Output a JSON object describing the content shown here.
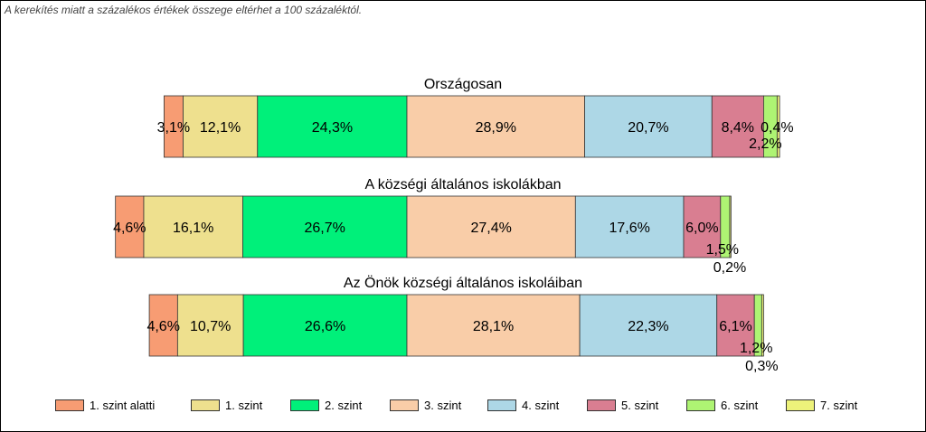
{
  "note": "A kerekítés miatt a  százalékos értékek összege eltérhet a 100 százaléktól.",
  "chart_data": {
    "type": "bar",
    "orientation": "horizontal",
    "stacked": true,
    "grid": false,
    "legend_position": "bottom",
    "legend": [
      {
        "label": "1. szint alatti",
        "color": "#F79C73"
      },
      {
        "label": "1. szint",
        "color": "#EEE08E"
      },
      {
        "label": "2. szint",
        "color": "#00F07A"
      },
      {
        "label": "3. szint",
        "color": "#F9CDA8"
      },
      {
        "label": "4. szint",
        "color": "#ADD7E6"
      },
      {
        "label": "5. szint",
        "color": "#D97E91"
      },
      {
        "label": "6. szint",
        "color": "#AEF473"
      },
      {
        "label": "7. szint",
        "color": "#EDF27A"
      }
    ],
    "groups": [
      {
        "title": "Országosan",
        "values": [
          3.1,
          12.1,
          24.3,
          28.9,
          20.7,
          8.4,
          2.2,
          0.4
        ],
        "labels": [
          "3,1%",
          "12,1%",
          "24,3%",
          "28,9%",
          "20,7%",
          "8,4%",
          "2,2%",
          "0,4%"
        ]
      },
      {
        "title": "A községi általános iskolákban",
        "values": [
          4.6,
          16.1,
          26.7,
          27.4,
          17.6,
          6.0,
          1.5,
          0.2
        ],
        "labels": [
          "4,6%",
          "16,1%",
          "26,7%",
          "27,4%",
          "17,6%",
          "6,0%",
          "1,5%",
          "0,2%"
        ]
      },
      {
        "title": "Az Önök községi általános iskoláiban",
        "values": [
          4.6,
          10.7,
          26.6,
          28.1,
          22.3,
          6.1,
          1.2,
          0.3
        ],
        "labels": [
          "4,6%",
          "10,7%",
          "26,6%",
          "28,1%",
          "22,3%",
          "6,1%",
          "1,2%",
          "0,3%"
        ]
      }
    ]
  }
}
